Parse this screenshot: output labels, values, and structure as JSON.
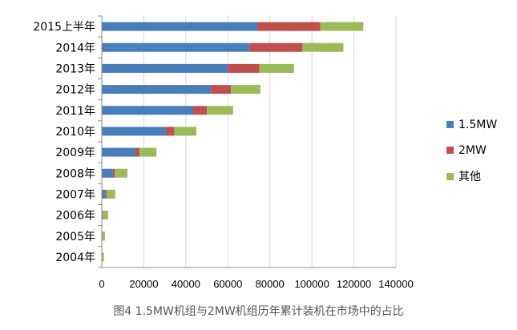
{
  "caption": "图4 1.5MW机组与2MW机组历年累计装机在市场中的占比",
  "colors": {
    "s1": "#4a7ebb",
    "s2": "#c0504d",
    "s3": "#9bbb59",
    "grid": "#d9d9d9",
    "axis": "#888888"
  },
  "chart_data": {
    "type": "bar",
    "orientation": "horizontal",
    "stacked": true,
    "categories": [
      "2015上半年",
      "2014年",
      "2013年",
      "2012年",
      "2011年",
      "2010年",
      "2009年",
      "2008年",
      "2007年",
      "2006年",
      "2005年",
      "2004年"
    ],
    "series": [
      {
        "name": "1.5MW",
        "color": "#4a7ebb",
        "values": [
          74000,
          70500,
          60000,
          52000,
          43500,
          30500,
          16000,
          5200,
          1800,
          300,
          100,
          50
        ]
      },
      {
        "name": "2MW",
        "color": "#c0504d",
        "values": [
          30000,
          25000,
          15000,
          9500,
          6500,
          4000,
          2000,
          1000,
          600,
          200,
          100,
          50
        ]
      },
      {
        "name": "其他",
        "color": "#9bbb59",
        "values": [
          20500,
          19500,
          16500,
          14000,
          12500,
          10500,
          8000,
          6000,
          4000,
          2500,
          1300,
          900
        ]
      }
    ],
    "xlim": [
      0,
      140000
    ],
    "xticks": [
      "0",
      "20000",
      "40000",
      "60000",
      "80000",
      "100000",
      "120000",
      "140000"
    ],
    "grid": true,
    "legend_position": "right"
  }
}
